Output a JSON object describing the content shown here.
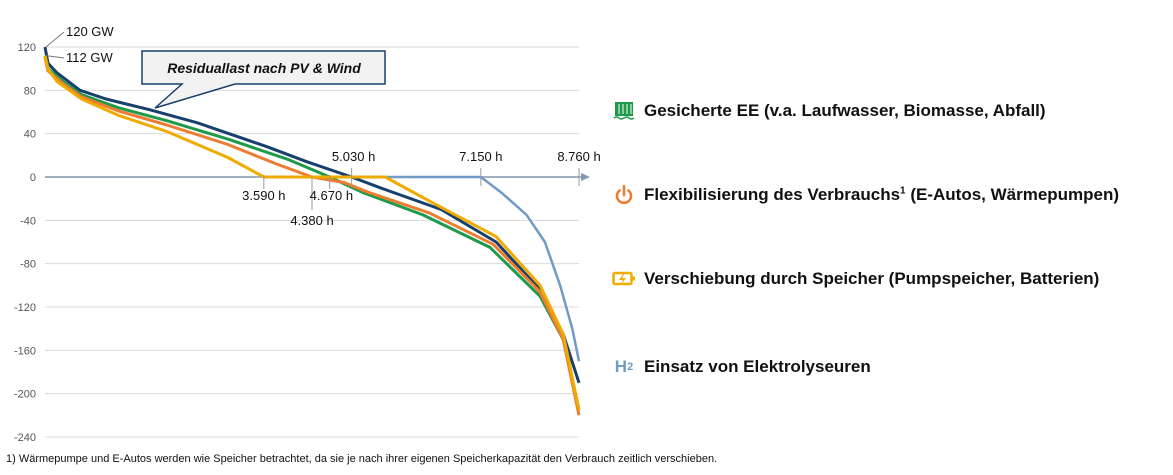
{
  "chart_data": {
    "type": "line",
    "title": "",
    "xlabel": "",
    "ylabel": "",
    "xlim": [
      0,
      8760
    ],
    "ylim": [
      -240,
      120
    ],
    "yticks": [
      120,
      80,
      40,
      0,
      -40,
      -80,
      -120,
      -160,
      -200,
      -240
    ],
    "grid": true,
    "callout": "Residuallast nach PV & Wind",
    "annotations": [
      {
        "label": "120 GW",
        "x": 0,
        "y": 120
      },
      {
        "label": "112 GW",
        "x": 0,
        "y": 112
      },
      {
        "label": "3.590 h",
        "x": 3590,
        "side": "below"
      },
      {
        "label": "4.380 h",
        "x": 4380,
        "side": "below-far"
      },
      {
        "label": "4.670 h",
        "x": 4670,
        "side": "below"
      },
      {
        "label": "5.030 h",
        "x": 5030,
        "side": "above"
      },
      {
        "label": "7.150 h",
        "x": 7150,
        "side": "above"
      },
      {
        "label": "8.760 h",
        "x": 8760,
        "side": "above"
      }
    ],
    "series": [
      {
        "key": "electrolysis",
        "color": "#6f9bc5",
        "points": [
          [
            5030,
            0
          ],
          [
            7150,
            0
          ],
          [
            7500,
            -15
          ],
          [
            7900,
            -35
          ],
          [
            8200,
            -60
          ],
          [
            8450,
            -100
          ],
          [
            8650,
            -140
          ],
          [
            8760,
            -170
          ]
        ]
      },
      {
        "key": "residual",
        "color": "#17406d",
        "points": [
          [
            0,
            120
          ],
          [
            50,
            105
          ],
          [
            200,
            96
          ],
          [
            574,
            80
          ],
          [
            1000,
            72
          ],
          [
            1722,
            62
          ],
          [
            2500,
            50
          ],
          [
            3640,
            28
          ],
          [
            4300,
            14
          ],
          [
            5030,
            0
          ],
          [
            5500,
            -10
          ],
          [
            6500,
            -30
          ],
          [
            7400,
            -60
          ],
          [
            8120,
            -104
          ],
          [
            8500,
            -145
          ],
          [
            8760,
            -190
          ]
        ]
      },
      {
        "key": "firm-re",
        "color": "#1e9a4a",
        "points": [
          [
            0,
            112
          ],
          [
            50,
            100
          ],
          [
            300,
            88
          ],
          [
            600,
            76
          ],
          [
            1200,
            64
          ],
          [
            2000,
            52
          ],
          [
            3000,
            35
          ],
          [
            4000,
            16
          ],
          [
            4670,
            0
          ],
          [
            5200,
            -14
          ],
          [
            6200,
            -35
          ],
          [
            7300,
            -65
          ],
          [
            8120,
            -110
          ],
          [
            8500,
            -150
          ],
          [
            8760,
            -215
          ]
        ]
      },
      {
        "key": "flex",
        "color": "#ed7d31",
        "points": [
          [
            0,
            110
          ],
          [
            50,
            98
          ],
          [
            300,
            86
          ],
          [
            600,
            74
          ],
          [
            1200,
            61
          ],
          [
            2000,
            48
          ],
          [
            3000,
            30
          ],
          [
            3800,
            12
          ],
          [
            4380,
            0
          ],
          [
            4900,
            -5
          ],
          [
            5300,
            -14
          ],
          [
            6300,
            -33
          ],
          [
            7350,
            -62
          ],
          [
            8120,
            -106
          ],
          [
            8500,
            -150
          ],
          [
            8760,
            -220
          ]
        ]
      },
      {
        "key": "storage",
        "color": "#f0ab00",
        "points": [
          [
            0,
            112
          ],
          [
            50,
            100
          ],
          [
            200,
            88
          ],
          [
            600,
            72
          ],
          [
            1200,
            57
          ],
          [
            2000,
            42
          ],
          [
            3000,
            18
          ],
          [
            3590,
            0
          ],
          [
            5580,
            0
          ],
          [
            6300,
            -22
          ],
          [
            7400,
            -55
          ],
          [
            8120,
            -100
          ],
          [
            8500,
            -145
          ],
          [
            8760,
            -215
          ]
        ]
      }
    ]
  },
  "legend": [
    {
      "icon": "hydro-plant-icon",
      "color": "#1e9a4a",
      "label": "Gesicherte EE (v.a. Laufwasser, Biomasse, Abfall)"
    },
    {
      "icon": "power-icon",
      "color": "#ed7d31",
      "label": "Flexibilisierung des Verbrauchs",
      "sup": "1",
      "label2": " (E-Autos, Wärmepumpen)"
    },
    {
      "icon": "battery-icon",
      "color": "#f0ab00",
      "label": "Verschiebung durch Speicher (Pumpspeicher, Batterien)"
    },
    {
      "icon": "h2-icon",
      "color": "#6f9bc5",
      "icon_text": "H",
      "icon_sub": "2",
      "label": "Einsatz von Elektrolyseuren"
    }
  ],
  "footnote": "1) Wärmepumpe und E-Autos werden wie Speicher betrachtet, da sie je nach ihrer eigenen Speicherkapazität den Verbrauch zeitlich verschieben."
}
